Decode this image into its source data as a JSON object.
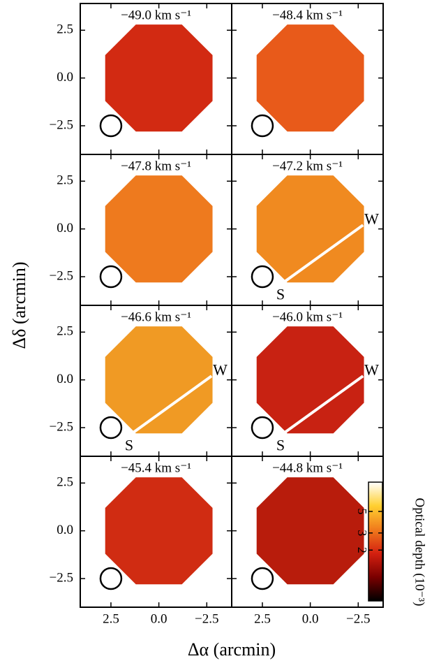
{
  "chart_data": {
    "type": "channel-map",
    "x_label": "Δα (arcmin)",
    "y_label": "Δδ (arcmin)",
    "xlim": [
      4.1,
      -3.8
    ],
    "ylim": [
      -4.0,
      3.9
    ],
    "xticks": [
      2.5,
      {
        "value": 0,
        "label": "0.0"
      },
      {
        "value": -2.5,
        "label": "−2.5"
      }
    ],
    "yticks": [
      {
        "value": -2.5,
        "label": "−2.5"
      },
      {
        "value": 0,
        "label": "0.0"
      },
      2.5
    ],
    "panels": [
      {
        "label": "−49.0 km s⁻¹",
        "color": "#d22a12"
      },
      {
        "label": "−48.4 km s⁻¹",
        "color": "#e85a1a"
      },
      {
        "label": "−47.8 km s⁻¹",
        "color": "#ee7a1e"
      },
      {
        "label": "−47.2 km s⁻¹",
        "color": "#f08a20",
        "annotations": [
          "W",
          "S"
        ]
      },
      {
        "label": "−46.6 km s⁻¹",
        "color": "#f09a24",
        "annotations": [
          "W",
          "S"
        ]
      },
      {
        "label": "−46.0 km s⁻¹",
        "color": "#c82212",
        "annotations": [
          "W",
          "S"
        ]
      },
      {
        "label": "−45.4 km s⁻¹",
        "color": "#d02c12"
      },
      {
        "label": "−44.8 km s⁻¹",
        "color": "#b81c0c"
      }
    ],
    "colorbar": {
      "label": "Optical depth (10⁻³)",
      "scale": "log",
      "lim": [
        0.6,
        10
      ],
      "ticks": [
        2,
        3,
        5
      ],
      "colormap": [
        "#000000",
        "#7a0000",
        "#d42010",
        "#f07a1c",
        "#ffd030",
        "#ffffff"
      ]
    }
  }
}
